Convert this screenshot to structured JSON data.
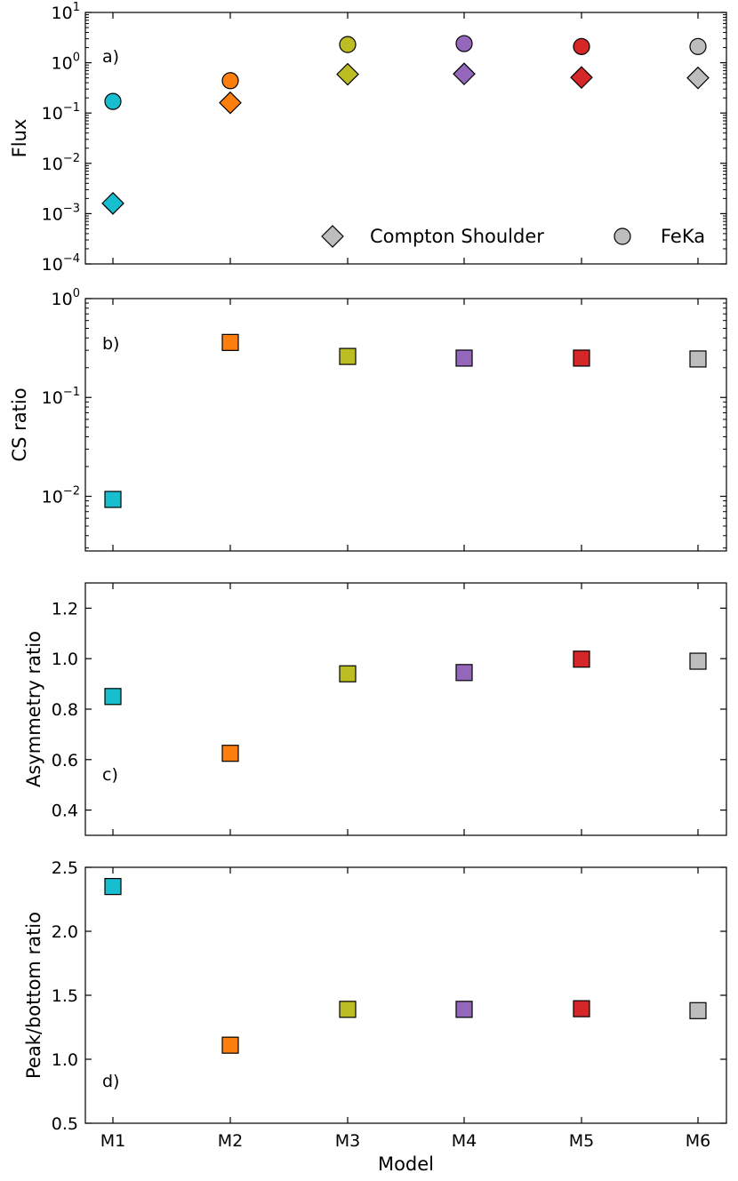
{
  "chart_data": {
    "type": "scatter",
    "shared_x": {
      "label": "Model",
      "categories": [
        "M1",
        "M2",
        "M3",
        "M4",
        "M5",
        "M6"
      ]
    },
    "colors": {
      "M1": "#17becf",
      "M2": "#ff7f0e",
      "M3": "#bcbd22",
      "M4": "#9467bd",
      "M5": "#d62728",
      "M6": "#bdbdbd"
    },
    "panels": [
      {
        "id": "a",
        "tag": "a)",
        "ylabel": "Flux",
        "yscale": "log",
        "ylim": [
          0.0001,
          10
        ],
        "yticks": [
          {
            "value": 0.0001,
            "base": "10",
            "exp": "−4"
          },
          {
            "value": 0.001,
            "base": "10",
            "exp": "−3"
          },
          {
            "value": 0.01,
            "base": "10",
            "exp": "−2"
          },
          {
            "value": 0.1,
            "base": "10",
            "exp": "−1"
          },
          {
            "value": 1,
            "base": "10",
            "exp": "0"
          },
          {
            "value": 10,
            "base": "10",
            "exp": "1"
          }
        ],
        "series": [
          {
            "name": "FeKa",
            "marker": "circle",
            "values": [
              0.17,
              0.44,
              2.3,
              2.4,
              2.1,
              2.1
            ]
          },
          {
            "name": "Compton Shoulder",
            "marker": "diamond",
            "values": [
              0.0016,
              0.16,
              0.59,
              0.6,
              0.51,
              0.5
            ]
          }
        ],
        "legend": {
          "position": "bottom-right",
          "entries": [
            {
              "label": "Compton Shoulder",
              "marker": "diamond"
            },
            {
              "label": "FeKa",
              "marker": "circle"
            }
          ]
        }
      },
      {
        "id": "b",
        "tag": "b)",
        "ylabel": "CS ratio",
        "yscale": "log",
        "ylim": [
          0.0028,
          1
        ],
        "yticks": [
          {
            "value": 0.01,
            "base": "10",
            "exp": "−2"
          },
          {
            "value": 0.1,
            "base": "10",
            "exp": "−1"
          },
          {
            "value": 1,
            "base": "10",
            "exp": "0"
          }
        ],
        "series": [
          {
            "name": "CS ratio",
            "marker": "square",
            "values": [
              0.0093,
              0.36,
              0.26,
              0.25,
              0.25,
              0.245
            ]
          }
        ]
      },
      {
        "id": "c",
        "tag": "c)",
        "ylabel": "Asymmetry ratio",
        "yscale": "linear",
        "ylim": [
          0.3,
          1.3
        ],
        "yticks": [
          {
            "value": 0.4,
            "label": "0.4"
          },
          {
            "value": 0.6,
            "label": "0.6"
          },
          {
            "value": 0.8,
            "label": "0.8"
          },
          {
            "value": 1.0,
            "label": "1.0"
          },
          {
            "value": 1.2,
            "label": "1.2"
          }
        ],
        "series": [
          {
            "name": "Asymmetry ratio",
            "marker": "square",
            "values": [
              0.85,
              0.625,
              0.94,
              0.945,
              0.998,
              0.99
            ]
          }
        ]
      },
      {
        "id": "d",
        "tag": "d)",
        "ylabel": "Peak/bottom ratio",
        "yscale": "linear",
        "ylim": [
          0.5,
          2.5
        ],
        "yticks": [
          {
            "value": 0.5,
            "label": "0.5"
          },
          {
            "value": 1.0,
            "label": "1.0"
          },
          {
            "value": 1.5,
            "label": "1.5"
          },
          {
            "value": 2.0,
            "label": "2.0"
          },
          {
            "value": 2.5,
            "label": "2.5"
          }
        ],
        "series": [
          {
            "name": "Peak/bottom ratio",
            "marker": "square",
            "values": [
              2.35,
              1.11,
              1.39,
              1.39,
              1.395,
              1.38
            ]
          }
        ]
      }
    ]
  }
}
